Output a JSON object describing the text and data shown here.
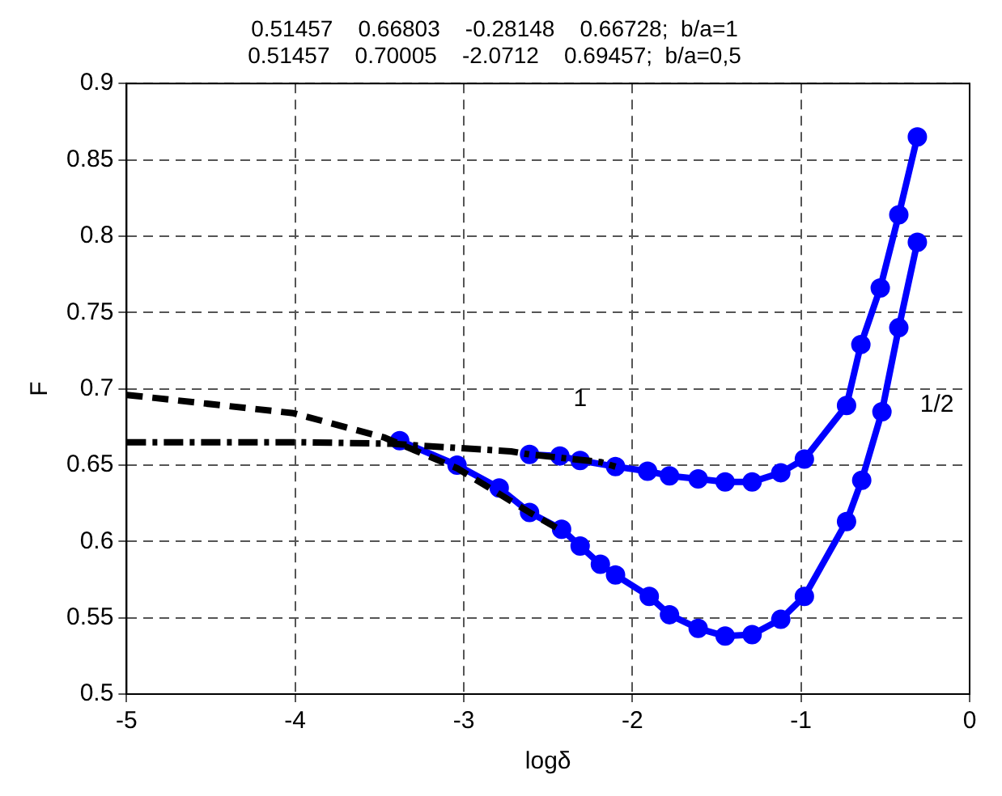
{
  "chart_data": {
    "type": "line",
    "title": "0.51457    0.66803    -0.28148    0.66728;  b/a=1",
    "subtitle": "0.51457    0.70005    -2.0712    0.69457;  b/a=0,5",
    "xlabel": "logδ",
    "ylabel": "F",
    "xlim": [
      -5,
      0
    ],
    "xticks": [
      -5,
      -4,
      -3,
      -2,
      -1,
      0
    ],
    "ylim": [
      0.5,
      0.9
    ],
    "yticks": [
      0.5,
      0.55,
      0.6,
      0.65,
      0.7,
      0.75,
      0.8,
      0.85,
      0.9
    ],
    "grid": true,
    "legend": false,
    "series": [
      {
        "name": "1",
        "color": "#0000ff",
        "marker": "circle",
        "line_style": "solid",
        "x": [
          -2.61,
          -2.43,
          -2.31,
          -2.1,
          -1.91,
          -1.78,
          -1.61,
          -1.45,
          -1.29,
          -1.12,
          -0.98,
          -0.73,
          -0.645,
          -0.53,
          -0.42,
          -0.31
        ],
        "values": [
          0.657,
          0.656,
          0.653,
          0.649,
          0.646,
          0.643,
          0.641,
          0.639,
          0.639,
          0.645,
          0.654,
          0.689,
          0.729,
          0.766,
          0.814,
          0.865
        ]
      },
      {
        "name": "1/2",
        "color": "#0000ff",
        "marker": "circle",
        "line_style": "solid",
        "x": [
          -3.38,
          -3.04,
          -2.79,
          -2.61,
          -2.42,
          -2.31,
          -2.19,
          -2.1,
          -1.9,
          -1.78,
          -1.61,
          -1.45,
          -1.29,
          -1.12,
          -0.98,
          -0.73,
          -0.64,
          -0.52,
          -0.42,
          -0.31
        ],
        "values": [
          0.666,
          0.65,
          0.635,
          0.619,
          0.608,
          0.597,
          0.585,
          0.578,
          0.564,
          0.552,
          0.543,
          0.538,
          0.539,
          0.549,
          0.564,
          0.613,
          0.64,
          0.685,
          0.74,
          0.796
        ]
      },
      {
        "color": "#000000",
        "marker": "none",
        "line_style": "dashed",
        "x": [
          -5,
          -4.01,
          -3.47,
          -3.04,
          -2.61,
          -2.42
        ],
        "values": [
          0.696,
          0.684,
          0.668,
          0.648,
          0.619,
          0.607
        ]
      },
      {
        "color": "#000000",
        "marker": "none",
        "line_style": "dotted",
        "x": [
          -5,
          -4,
          -3.43,
          -2.72,
          -2.61,
          -2.19,
          -2.1
        ],
        "values": [
          0.665,
          0.665,
          0.664,
          0.659,
          0.657,
          0.652,
          0.649
        ]
      }
    ]
  }
}
